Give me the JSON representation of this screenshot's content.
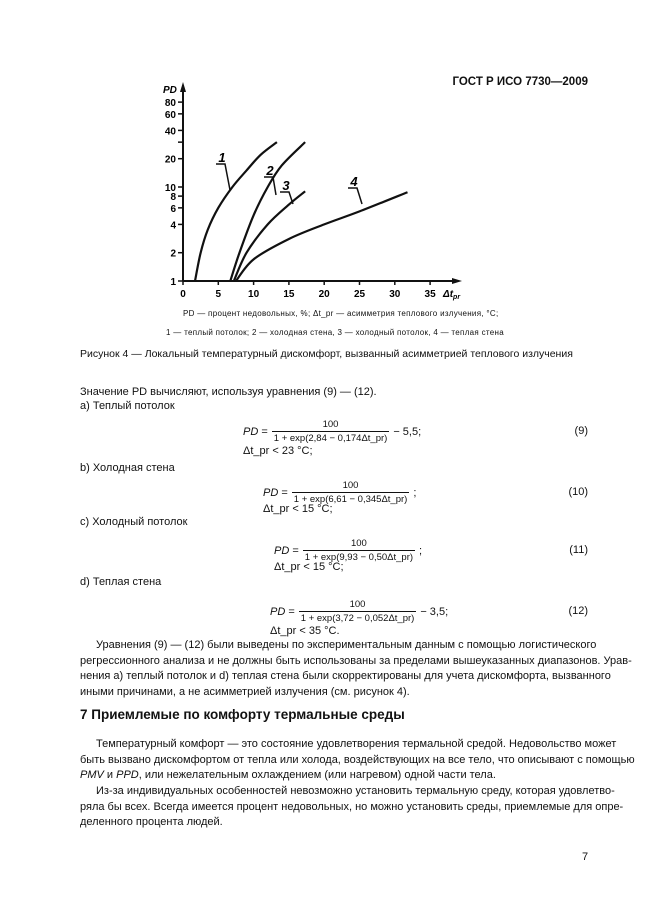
{
  "header": "ГОСТ Р ИСО 7730—2009",
  "chart_data": {
    "type": "line",
    "ylabel": "PD",
    "xlabel": "Δt_pr",
    "y_scale": "log",
    "xlim": [
      0,
      35
    ],
    "ylim": [
      1,
      80
    ],
    "x_ticks": [
      0,
      5,
      10,
      15,
      20,
      25,
      30,
      35
    ],
    "y_ticks": [
      1,
      2,
      4,
      6,
      8,
      10,
      20,
      40,
      60,
      80
    ],
    "grid": false,
    "series": [
      {
        "name": "1",
        "points": [
          [
            1.7,
            1
          ],
          [
            2.5,
            2
          ],
          [
            3.5,
            3.5
          ],
          [
            5,
            6
          ],
          [
            7,
            10
          ],
          [
            9,
            15
          ],
          [
            11,
            22
          ],
          [
            13.3,
            30
          ]
        ]
      },
      {
        "name": "2",
        "points": [
          [
            6.7,
            1
          ],
          [
            8,
            2
          ],
          [
            10,
            5
          ],
          [
            12,
            10
          ],
          [
            14,
            17
          ],
          [
            17.3,
            30
          ]
        ]
      },
      {
        "name": "3",
        "points": [
          [
            7.2,
            1
          ],
          [
            9,
            2
          ],
          [
            12,
            4
          ],
          [
            15,
            6.5
          ],
          [
            17.3,
            9
          ]
        ]
      },
      {
        "name": "4",
        "points": [
          [
            7.5,
            1
          ],
          [
            10,
            1.7
          ],
          [
            15,
            2.8
          ],
          [
            20,
            4
          ],
          [
            25,
            5.5
          ],
          [
            31.8,
            8.8
          ]
        ]
      }
    ]
  },
  "figure": {
    "legend_line1": "PD — процент недовольных, %;  Δt_pr — асимметрия теплового излучения, °С;",
    "legend_line2": "1 — теплый потолок; 2 — холодная стена, 3 — холодный потолок, 4 — теплая стена",
    "caption": "Рисунок 4 — Локальный температурный дискомфорт, вызванный асимметрией теплового излучения"
  },
  "intro": "Значение PD вычисляют, используя уравнения (9) — (12).",
  "cases": [
    {
      "label": "a) Теплый потолок",
      "num": "100",
      "den": "1 + exp(2,84 − 0,174Δt_pr)",
      "tail": "− 5,5;",
      "eqno": "(9)",
      "limit": "Δt_pr < 23 °С;"
    },
    {
      "label": "b) Холодная стена",
      "num": "100",
      "den": "1 + exp(6,61 − 0,345Δt_pr)",
      "tail": ";",
      "eqno": "(10)",
      "limit": "Δt_pr < 15 °С;"
    },
    {
      "label": "c) Холодный потолок",
      "num": "100",
      "den": "1 + exp(9,93 − 0,50Δt_pr)",
      "tail": ";",
      "eqno": "(11)",
      "limit": "Δt_pr < 15 °С;"
    },
    {
      "label": "d) Теплая стена",
      "num": "100",
      "den": "1 + exp(3,72 − 0,052Δt_pr)",
      "tail": "− 3,5;",
      "eqno": "(12)",
      "limit": "Δt_pr < 35 °С."
    }
  ],
  "para1": [
    "Уравнения (9) — (12) были выведены по экспериментальным данным с помощью логистического",
    "регрессионного анализа и не должны быть использованы за пределами вышеуказанных диапазонов. Урав-",
    "нения а) теплый потолок и d) теплая стена были скорректированы для учета дискомфорта, вызванного",
    "иными причинами, а не асимметрией излучения (см. рисунок 4)."
  ],
  "section_heading": "7 Приемлемые по комфорту термальные среды",
  "para2": [
    "Температурный комфорт — это состояние удовлетворения термальной средой. Недовольство может",
    "быть вызвано дискомфортом от тепла или холода, воздействующих на все тело, что описывают с помощью",
    "PMV и PPD, или нежелательным охлаждением (или нагревом) одной части тела."
  ],
  "para3": [
    "Из-за индивидуальных особенностей невозможно установить термальную среду, которая удовлетво-",
    "ряла бы всех. Всегда имеется процент недовольных, но можно установить среды, приемлемые для опре-",
    "деленного процента людей."
  ],
  "page_number": "7"
}
